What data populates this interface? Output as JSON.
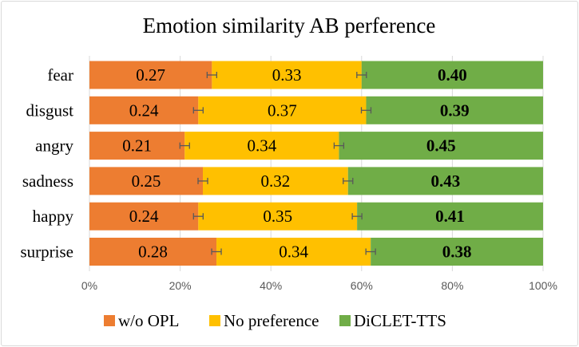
{
  "chart_data": {
    "type": "bar",
    "orientation": "horizontal",
    "stacked": true,
    "title": "Emotion similarity AB perference",
    "categories": [
      "fear",
      "disgust",
      "angry",
      "sadness",
      "happy",
      "surprise"
    ],
    "series": [
      {
        "name": "w/o OPL",
        "color": "#ed7d31",
        "values": [
          0.27,
          0.24,
          0.21,
          0.25,
          0.24,
          0.28
        ],
        "labels": [
          "0.27",
          "0.24",
          "0.21",
          "0.25",
          "0.24",
          "0.28"
        ],
        "bold": false
      },
      {
        "name": "No preference",
        "color": "#ffc000",
        "values": [
          0.33,
          0.37,
          0.34,
          0.32,
          0.35,
          0.34
        ],
        "labels": [
          "0.33",
          "0.37",
          "0.34",
          "0.32",
          "0.35",
          "0.34"
        ],
        "bold": false
      },
      {
        "name": "DiCLET-TTS",
        "color": "#70ad47",
        "values": [
          0.4,
          0.39,
          0.45,
          0.43,
          0.41,
          0.38
        ],
        "labels": [
          "0.40",
          "0.39",
          "0.45",
          "0.43",
          "0.41",
          "0.38"
        ],
        "bold": true
      }
    ],
    "error_bars": "at segment boundaries",
    "x_ticks": [
      "0%",
      "20%",
      "40%",
      "60%",
      "80%",
      "100%"
    ],
    "xlim": [
      0,
      1
    ],
    "grid": true,
    "legend_position": "bottom"
  }
}
